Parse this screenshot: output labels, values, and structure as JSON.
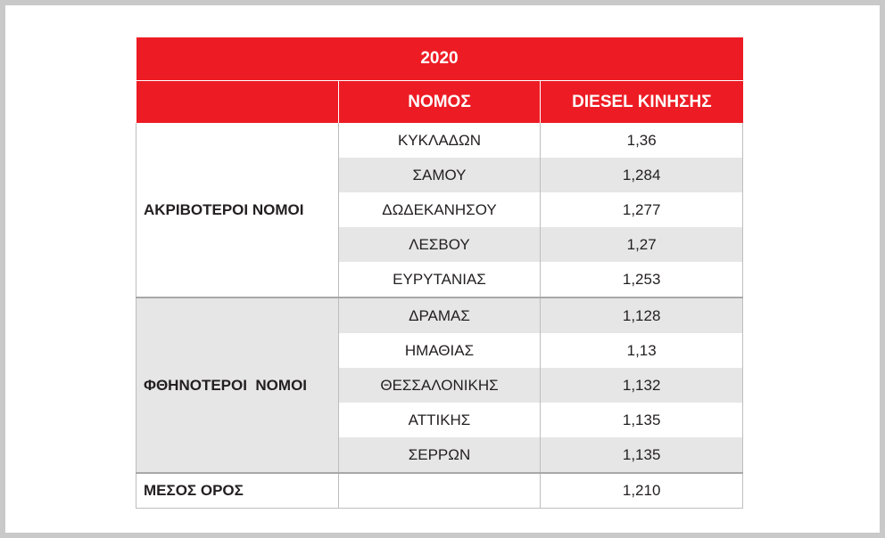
{
  "table": {
    "title": "2020",
    "columns": [
      "ΝΟΜΟΣ",
      "DIESEL ΚΙΝΗΣΗΣ"
    ],
    "groups": [
      {
        "label": "ΑΚΡΙΒΟΤΕΡΟΙ ΝΟΜΟΙ",
        "rows": [
          [
            "ΚΥΚΛΑΔΩΝ",
            "1,36"
          ],
          [
            "ΣΑΜΟΥ",
            "1,284"
          ],
          [
            "ΔΩΔΕΚΑΝΗΣΟΥ",
            "1,277"
          ],
          [
            "ΛΕΣΒΟΥ",
            "1,27"
          ],
          [
            "ΕΥΡΥΤΑΝΙΑΣ",
            "1,253"
          ]
        ]
      },
      {
        "label": "ΦΘΗΝΟΤΕΡΟΙ  ΝΟΜΟΙ",
        "rows": [
          [
            "ΔΡΑΜΑΣ",
            "1,128"
          ],
          [
            "ΗΜΑΘΙΑΣ",
            "1,13"
          ],
          [
            "ΘΕΣΣΑΛΟΝΙΚΗΣ",
            "1,132"
          ],
          [
            "ΑΤΤΙΚΗΣ",
            "1,135"
          ],
          [
            "ΣΕΡΡΩΝ",
            "1,135"
          ]
        ]
      }
    ],
    "footer": {
      "label": "ΜΕΣΟΣ ΟΡΟΣ",
      "value": "1,210"
    }
  }
}
